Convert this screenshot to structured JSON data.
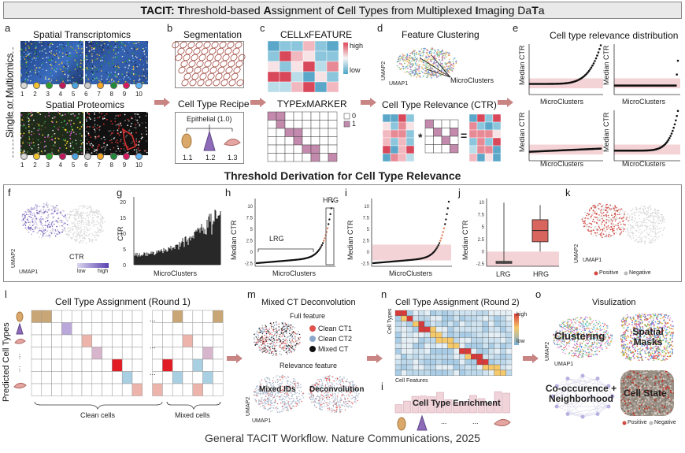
{
  "title": {
    "parts": [
      "TACIT: ",
      "T",
      "hreshold-based ",
      "A",
      "ssignment of ",
      "C",
      "ell Types from Multiplexed ",
      "I",
      "maging Da",
      "T",
      "a"
    ],
    "full": "TACIT: Threshold-based Assignment of Cell Types from Multiplexed Imaging DaTa"
  },
  "row1": {
    "side_label": "Single or Multiomics",
    "a": {
      "letter": "a",
      "top_title": "Spatial Transcriptomics",
      "bottom_title": "Spatial Proteomics",
      "legend_left": [
        "1",
        "2",
        "3",
        "4",
        "5"
      ],
      "legend_right": [
        "6",
        "7",
        "8",
        "9",
        "10"
      ],
      "legend_colors": [
        "#d9d9d9",
        "#f2c230",
        "#2ca02c",
        "#c2185b",
        "#4aa3df",
        "#cccccc",
        "#f5a623",
        "#1f8a3a",
        "#d81b60",
        "#64b5f6"
      ]
    },
    "b": {
      "letter": "b",
      "seg_title": "Segmentation",
      "recipe_title": "Cell Type Recipe",
      "recipe_parent": "Epithelial (1.0)",
      "recipe_children": [
        "1.1",
        "1.2",
        "1.3"
      ]
    },
    "c": {
      "letter": "c",
      "cf_title": "CELLxFEATURE",
      "tm_title": "TYPExMARKER",
      "legend_high": "high",
      "legend_low": "low",
      "bin0": "0",
      "bin1": "1"
    },
    "d": {
      "letter": "d",
      "fc_title": "Feature Clustering",
      "ctr_title": "Cell Type Relevance (CTR)",
      "microclusters": "MicroClusters",
      "umap1": "UMAP1",
      "umap2": "UMAP2",
      "op_mult": "*",
      "op_eq": "="
    },
    "e": {
      "letter": "e",
      "title": "Cell type relevance distribution",
      "ylabel": "Median CTR",
      "xlabel": "MicroClusters"
    }
  },
  "section2_title": "Threshold Derivation for Cell Type Relevance",
  "row2": {
    "f": {
      "letter": "f",
      "legend": "CTR",
      "low": "low",
      "high": "high",
      "umap1": "UMAP1",
      "umap2": "UMAP2"
    },
    "g": {
      "letter": "g",
      "ylabel": "CTR",
      "xlabel": "MicroClusters",
      "yticks": [
        "0",
        "5",
        "10",
        "15",
        "20"
      ]
    },
    "h": {
      "letter": "h",
      "ylabel": "Median CTR",
      "xlabel": "MicroClusters",
      "lrg": "LRG",
      "hrg": "HRG",
      "yticks": [
        "10",
        "7.5",
        "5",
        "2.5",
        "0",
        "-2.5"
      ]
    },
    "i": {
      "letter": "i",
      "ylabel": "Median CTR",
      "xlabel": "MicroClusters",
      "yticks": [
        "10",
        "7.5",
        "5",
        "2.5",
        "0",
        "-2.5"
      ]
    },
    "j": {
      "letter": "j",
      "ylabel": "Median CTR",
      "cats": [
        "LRG",
        "HRG"
      ],
      "yticks": [
        "10",
        "7.5",
        "5",
        "2.5",
        "0",
        "-2.5"
      ],
      "chart_data": {
        "type": "box",
        "categories": [
          "LRG",
          "HRG"
        ],
        "series": [
          {
            "name": "LRG",
            "min": -2.5,
            "q1": -2.4,
            "median": -2.2,
            "q3": -2.0,
            "max": 10
          },
          {
            "name": "HRG",
            "min": 0,
            "q1": 2.0,
            "median": 4.3,
            "q3": 6.5,
            "max": 9.5
          }
        ],
        "ylim": [
          -3,
          10.5
        ],
        "ylabel": "Median CTR"
      }
    },
    "k": {
      "letter": "k",
      "positive": "Positive",
      "negative": "Negative",
      "umap1": "UMAP1",
      "umap2": "UMAP2"
    }
  },
  "row3": {
    "l": {
      "letter": "l",
      "title": "Cell Type Assignment (Round 1)",
      "ylabel": "Predicted Cell Types",
      "clean": "Clean cells",
      "mixed": "Mixed cells",
      "dots": "..."
    },
    "m": {
      "letter": "m",
      "title": "Mixed CT Deconvolution",
      "full_feature": "Full feature",
      "relevance_feature": "Relevance feature",
      "legend": [
        "Clean CT1",
        "Clean CT2",
        "Mixed CT"
      ],
      "legend_colors": [
        "#e0524e",
        "#8aa7c9",
        "#111111"
      ],
      "mixed_ids": "Mixed IDs",
      "deconv": "Deconvolution",
      "umap1": "UMAP1",
      "umap2": "UMAP2"
    },
    "n": {
      "letter": "n",
      "title": "Cell Type Assignment (Round 2)",
      "cell_types": "Cell Types",
      "cell_features": "Cell Features",
      "high": "high",
      "low": "low"
    },
    "i2": {
      "letter": "i",
      "enrich": "Cell Type Enrichment",
      "dots": "..."
    },
    "o": {
      "letter": "o",
      "title": "Visulization",
      "clustering": "Clustering",
      "spatial_masks": "Spatial Masks",
      "cooc": "Co-occurence + Neighborhood",
      "cell_state": "Cell State",
      "positive": "Positive",
      "negative": "Negative",
      "umap1": "UMAP1",
      "umap2": "UMAP2"
    }
  },
  "caption": "General TACIT Workflow. Nature Communications, 2025",
  "colors": {
    "arrow": "#c98484",
    "pink_bg": "#f3d3d6",
    "red": "#d24a43",
    "purple": "#6b52b8",
    "heat_high": "#d8485a",
    "heat_low": "#5aa7c9"
  }
}
